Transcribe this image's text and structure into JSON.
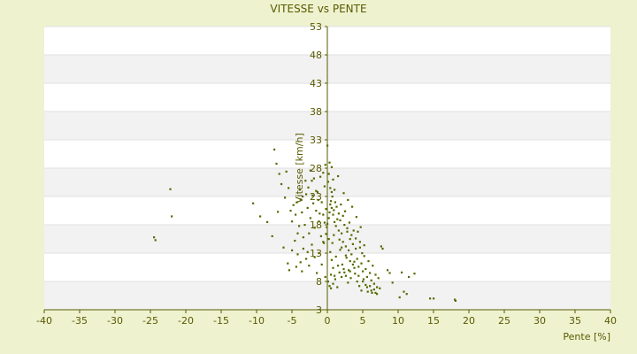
{
  "colors": {
    "page_background": "#eef2cf",
    "plot_background": "#ffffff",
    "band_background": "#f2f2f2",
    "axis_color": "#5a5a00",
    "text_color": "#5a5a00",
    "point_color": "#556b00"
  },
  "chart_data": {
    "type": "scatter",
    "title": "VITESSE vs PENTE",
    "xlabel": "Pente [%]",
    "ylabel": "Vitesse [km/h]",
    "xlim": [
      -40,
      40
    ],
    "ylim": [
      3,
      53
    ],
    "x_ticks": [
      -40,
      -35,
      -30,
      -25,
      -20,
      -15,
      -10,
      -5,
      0,
      5,
      10,
      15,
      20,
      25,
      30,
      35,
      40
    ],
    "y_ticks": [
      3,
      8,
      13,
      18,
      23,
      28,
      33,
      38,
      43,
      48,
      53
    ],
    "grid": "alternating horizontal bands",
    "legend": "none",
    "points": [
      [
        -24.5,
        15.8
      ],
      [
        -24.3,
        15.3
      ],
      [
        -22.2,
        24.3
      ],
      [
        -22.0,
        19.5
      ],
      [
        -7.5,
        31.3
      ],
      [
        -7.2,
        28.8
      ],
      [
        -6.8,
        27.0
      ],
      [
        -6.5,
        25.2
      ],
      [
        -6.0,
        22.8
      ],
      [
        -5.8,
        27.4
      ],
      [
        -5.5,
        24.5
      ],
      [
        -5.2,
        20.5
      ],
      [
        -5.0,
        18.6
      ],
      [
        -4.8,
        21.5
      ],
      [
        -4.5,
        19.8
      ],
      [
        -4.2,
        16.5
      ],
      [
        -4.0,
        17.8
      ],
      [
        -3.8,
        22.5
      ],
      [
        -3.6,
        20.2
      ],
      [
        -3.4,
        15.8
      ],
      [
        -3.2,
        18.0
      ],
      [
        -3.0,
        23.4
      ],
      [
        -2.8,
        21.0
      ],
      [
        -2.6,
        16.5
      ],
      [
        -2.4,
        19.2
      ],
      [
        -2.2,
        25.8
      ],
      [
        -2.0,
        21.8
      ],
      [
        -1.8,
        17.5
      ],
      [
        -1.6,
        20.5
      ],
      [
        -1.4,
        23.8
      ],
      [
        -1.2,
        18.6
      ],
      [
        -1.0,
        26.5
      ],
      [
        -0.8,
        22.0
      ],
      [
        -0.6,
        19.8
      ],
      [
        -0.4,
        24.8
      ],
      [
        -0.2,
        20.8
      ],
      [
        -0.1,
        17.6
      ],
      [
        -9.5,
        19.5
      ],
      [
        -10.5,
        21.8
      ],
      [
        -8.5,
        18.5
      ],
      [
        -7.8,
        16.0
      ],
      [
        -7.0,
        20.3
      ],
      [
        -6.2,
        14.0
      ],
      [
        -5.6,
        11.2
      ],
      [
        -5.4,
        10.0
      ],
      [
        -5.0,
        13.5
      ],
      [
        -4.6,
        15.2
      ],
      [
        -4.2,
        12.8
      ],
      [
        -3.8,
        11.4
      ],
      [
        -3.4,
        13.8
      ],
      [
        -3.0,
        12.0
      ],
      [
        -2.6,
        10.8
      ],
      [
        -2.2,
        14.5
      ],
      [
        -1.8,
        12.3
      ],
      [
        -1.5,
        9.5
      ],
      [
        -1.2,
        13.0
      ],
      [
        -0.8,
        11.0
      ],
      [
        -0.5,
        14.8
      ],
      [
        -0.3,
        8.8
      ],
      [
        -2.8,
        13.2
      ],
      [
        -3.6,
        9.8
      ],
      [
        -4.4,
        10.6
      ],
      [
        0.0,
        32.0
      ],
      [
        0.2,
        27.0
      ],
      [
        0.4,
        24.5
      ],
      [
        0.5,
        22.2
      ],
      [
        0.6,
        21.0
      ],
      [
        0.8,
        19.8
      ],
      [
        1.0,
        18.5
      ],
      [
        1.2,
        17.8
      ],
      [
        0.3,
        20.2
      ],
      [
        0.7,
        23.0
      ],
      [
        0.1,
        25.6
      ],
      [
        0.9,
        20.6
      ],
      [
        1.1,
        22.0
      ],
      [
        1.4,
        19.0
      ],
      [
        1.6,
        17.0
      ],
      [
        1.8,
        18.8
      ],
      [
        2.0,
        16.5
      ],
      [
        2.2,
        15.0
      ],
      [
        2.4,
        18.0
      ],
      [
        2.6,
        14.2
      ],
      [
        2.8,
        16.8
      ],
      [
        3.0,
        13.5
      ],
      [
        3.2,
        15.5
      ],
      [
        3.4,
        12.8
      ],
      [
        3.6,
        14.6
      ],
      [
        3.8,
        11.5
      ],
      [
        4.0,
        13.8
      ],
      [
        4.2,
        12.0
      ],
      [
        4.4,
        10.6
      ],
      [
        4.6,
        14.0
      ],
      [
        4.8,
        11.2
      ],
      [
        5.0,
        9.8
      ],
      [
        5.2,
        12.5
      ],
      [
        5.4,
        10.2
      ],
      [
        5.6,
        8.8
      ],
      [
        5.8,
        11.6
      ],
      [
        6.0,
        9.5
      ],
      [
        6.2,
        8.2
      ],
      [
        6.4,
        10.8
      ],
      [
        6.6,
        7.6
      ],
      [
        6.8,
        9.2
      ],
      [
        7.0,
        7.0
      ],
      [
        7.2,
        8.6
      ],
      [
        7.4,
        6.8
      ],
      [
        7.6,
        14.2
      ],
      [
        7.8,
        13.8
      ],
      [
        8.5,
        10.0
      ],
      [
        8.8,
        9.5
      ],
      [
        9.2,
        7.8
      ],
      [
        10.5,
        9.6
      ],
      [
        10.8,
        6.2
      ],
      [
        11.2,
        5.8
      ],
      [
        11.5,
        8.8
      ],
      [
        12.3,
        9.4
      ],
      [
        10.2,
        5.2
      ],
      [
        14.5,
        5.0
      ],
      [
        15.0,
        5.0
      ],
      [
        18.0,
        4.8
      ],
      [
        18.1,
        4.6
      ],
      [
        0.2,
        15.5
      ],
      [
        0.4,
        13.2
      ],
      [
        0.6,
        11.8
      ],
      [
        0.8,
        10.4
      ],
      [
        1.0,
        9.0
      ],
      [
        1.2,
        12.4
      ],
      [
        1.5,
        10.8
      ],
      [
        1.8,
        13.6
      ],
      [
        2.1,
        11.0
      ],
      [
        2.4,
        9.6
      ],
      [
        2.7,
        12.2
      ],
      [
        3.0,
        10.0
      ],
      [
        3.3,
        8.6
      ],
      [
        3.6,
        11.0
      ],
      [
        3.9,
        9.4
      ],
      [
        4.2,
        8.0
      ],
      [
        4.5,
        7.2
      ],
      [
        4.8,
        6.4
      ],
      [
        5.1,
        8.4
      ],
      [
        5.4,
        7.4
      ],
      [
        5.7,
        6.2
      ],
      [
        6.0,
        7.2
      ],
      [
        6.3,
        6.0
      ],
      [
        6.6,
        6.6
      ],
      [
        7.0,
        5.8
      ],
      [
        0.1,
        8.0
      ],
      [
        0.3,
        7.2
      ],
      [
        0.5,
        9.2
      ],
      [
        0.7,
        14.8
      ],
      [
        0.9,
        16.2
      ],
      [
        0.0,
        18.2
      ],
      [
        0.2,
        19.2
      ],
      [
        0.4,
        21.6
      ],
      [
        0.6,
        23.8
      ],
      [
        0.8,
        26.0
      ],
      [
        1.0,
        24.2
      ],
      [
        1.3,
        21.2
      ],
      [
        1.6,
        20.0
      ],
      [
        1.9,
        21.6
      ],
      [
        2.2,
        19.6
      ],
      [
        2.5,
        20.4
      ],
      [
        2.8,
        17.4
      ],
      [
        3.1,
        18.4
      ],
      [
        3.4,
        16.2
      ],
      [
        3.7,
        17.0
      ],
      [
        4.0,
        15.6
      ],
      [
        4.3,
        16.8
      ],
      [
        4.6,
        15.0
      ],
      [
        4.9,
        13.0
      ],
      [
        5.2,
        14.4
      ],
      [
        -0.2,
        16.4
      ],
      [
        -0.4,
        18.4
      ],
      [
        -0.6,
        15.0
      ],
      [
        -0.9,
        16.0
      ],
      [
        -1.1,
        20.0
      ],
      [
        -1.3,
        22.4
      ],
      [
        -1.6,
        24.0
      ],
      [
        -1.9,
        26.2
      ],
      [
        -2.1,
        23.2
      ],
      [
        -2.4,
        27.6
      ],
      [
        -2.7,
        24.6
      ],
      [
        -3.1,
        25.8
      ],
      [
        -3.5,
        23.0
      ],
      [
        -3.9,
        24.2
      ],
      [
        -4.3,
        22.0
      ],
      [
        0.3,
        29.0
      ],
      [
        0.6,
        28.2
      ],
      [
        -0.3,
        28.6
      ],
      [
        -0.6,
        27.2
      ],
      [
        1.5,
        26.6
      ],
      [
        2.3,
        23.6
      ],
      [
        2.9,
        22.4
      ],
      [
        3.5,
        21.2
      ],
      [
        4.1,
        19.4
      ],
      [
        4.7,
        17.6
      ],
      [
        1.7,
        15.4
      ],
      [
        2.0,
        14.0
      ],
      [
        2.6,
        12.6
      ],
      [
        3.2,
        11.6
      ],
      [
        3.8,
        10.4
      ],
      [
        4.4,
        9.0
      ],
      [
        5.0,
        8.0
      ],
      [
        5.6,
        7.0
      ],
      [
        6.2,
        6.4
      ],
      [
        6.8,
        6.0
      ],
      [
        0.5,
        6.8
      ],
      [
        0.8,
        7.6
      ],
      [
        1.1,
        8.4
      ],
      [
        1.4,
        7.0
      ],
      [
        1.7,
        9.6
      ],
      [
        2.0,
        8.8
      ],
      [
        2.3,
        10.2
      ],
      [
        2.6,
        9.0
      ],
      [
        2.9,
        7.8
      ],
      [
        3.2,
        9.8
      ]
    ]
  }
}
